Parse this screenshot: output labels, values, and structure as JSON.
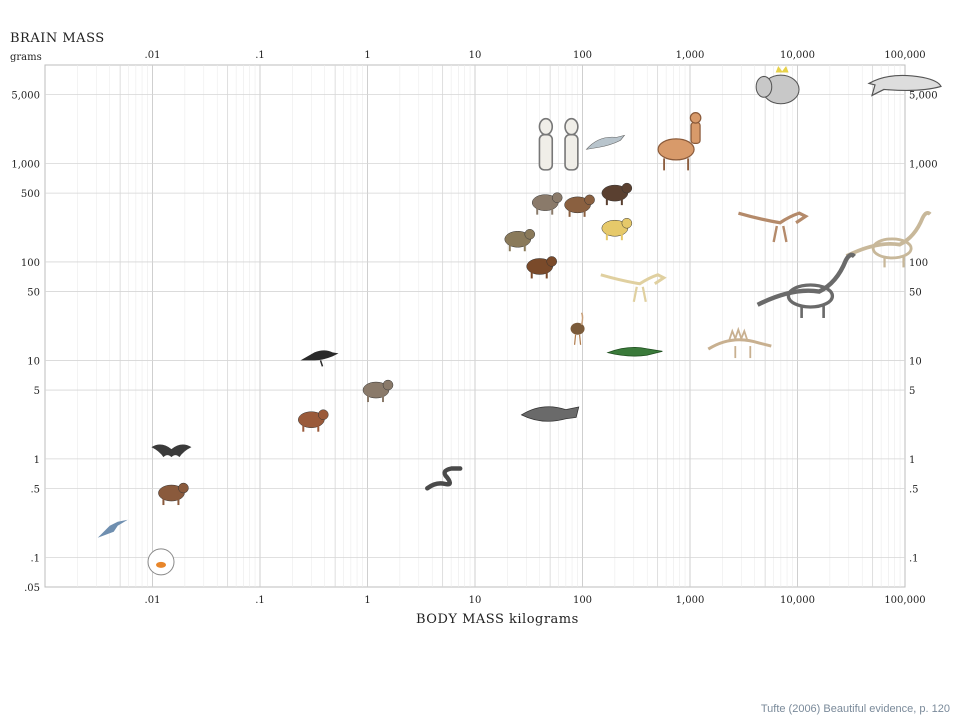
{
  "credit": "Tufte (2006) Beautiful evidence, p. 120",
  "chart_data": {
    "type": "scatter",
    "ylabel": "BRAIN MASS",
    "ylabel_unit": "grams",
    "xlabel": "BODY MASS kilograms",
    "x_scale": "log",
    "y_scale": "log",
    "xlim": [
      0.001,
      100000
    ],
    "ylim": [
      0.05,
      10000
    ],
    "grid": true,
    "x_ticks": [
      {
        "value": 0.01,
        "label": ".01"
      },
      {
        "value": 0.1,
        "label": ".1"
      },
      {
        "value": 1,
        "label": "1"
      },
      {
        "value": 10,
        "label": "10"
      },
      {
        "value": 100,
        "label": "100"
      },
      {
        "value": 1000,
        "label": "1,000"
      },
      {
        "value": 10000,
        "label": "10,000"
      },
      {
        "value": 100000,
        "label": "100,000"
      }
    ],
    "y_ticks_left": [
      {
        "value": 5000,
        "label": "5,000"
      },
      {
        "value": 1000,
        "label": "1,000"
      },
      {
        "value": 500,
        "label": "500"
      },
      {
        "value": 100,
        "label": "100"
      },
      {
        "value": 50,
        "label": "50"
      },
      {
        "value": 10,
        "label": "10"
      },
      {
        "value": 5,
        "label": "5"
      },
      {
        "value": 1,
        "label": "1"
      },
      {
        "value": 0.5,
        "label": ".5"
      },
      {
        "value": 0.1,
        "label": ".1"
      },
      {
        "value": 0.05,
        "label": ".05"
      }
    ],
    "y_ticks_right": [
      {
        "value": 5000,
        "label": "5,000"
      },
      {
        "value": 1000,
        "label": "1,000"
      },
      {
        "value": 100,
        "label": "100"
      },
      {
        "value": 50,
        "label": "50"
      },
      {
        "value": 10,
        "label": "10"
      },
      {
        "value": 5,
        "label": "5"
      },
      {
        "value": 1,
        "label": "1"
      },
      {
        "value": 0.5,
        "label": ".5"
      },
      {
        "value": 0.1,
        "label": ".1"
      }
    ],
    "points": [
      {
        "icon": "hummingbird",
        "x": 0.004,
        "y": 0.2,
        "color": "#6f8fb0"
      },
      {
        "icon": "goldfish-bowl",
        "x": 0.012,
        "y": 0.09,
        "color": "#e8862a"
      },
      {
        "icon": "mole",
        "x": 0.015,
        "y": 0.45,
        "color": "#8a5a3c"
      },
      {
        "icon": "bat",
        "x": 0.015,
        "y": 1.2,
        "color": "#3a3a3a"
      },
      {
        "icon": "rat",
        "x": 0.3,
        "y": 2.5,
        "color": "#9a5a3a"
      },
      {
        "icon": "raven",
        "x": 0.35,
        "y": 11,
        "color": "#2a2a2a"
      },
      {
        "icon": "squirrel",
        "x": 1.2,
        "y": 5,
        "color": "#8a7a6a"
      },
      {
        "icon": "eel",
        "x": 5,
        "y": 0.65,
        "color": "#4a4a4a"
      },
      {
        "icon": "coelacanth",
        "x": 50,
        "y": 2.8,
        "color": "#6a6a6a"
      },
      {
        "icon": "human",
        "x": 60,
        "y": 1400,
        "color": "#d8d4cc"
      },
      {
        "icon": "dolphin",
        "x": 160,
        "y": 1600,
        "color": "#b8c4cc"
      },
      {
        "icon": "chimpanzee",
        "x": 45,
        "y": 400,
        "color": "#8a7a6a"
      },
      {
        "icon": "baboon",
        "x": 25,
        "y": 170,
        "color": "#8a7a5a"
      },
      {
        "icon": "wolf",
        "x": 40,
        "y": 90,
        "color": "#7a4a2a"
      },
      {
        "icon": "gorilla",
        "x": 200,
        "y": 500,
        "color": "#5a4030"
      },
      {
        "icon": "orangutan",
        "x": 90,
        "y": 380,
        "color": "#8a6040"
      },
      {
        "icon": "lion",
        "x": 200,
        "y": 220,
        "color": "#e6c96a"
      },
      {
        "icon": "centaur",
        "x": 900,
        "y": 1600,
        "color": "#d89a6a"
      },
      {
        "icon": "elephant-king",
        "x": 7000,
        "y": 6000,
        "color": "#c8c8c8"
      },
      {
        "icon": "whale",
        "x": 100000,
        "y": 6500,
        "color": "#dddddd"
      },
      {
        "icon": "tyrannosaurus",
        "x": 6000,
        "y": 250,
        "color": "#b48a6a"
      },
      {
        "icon": "brachiosaurus",
        "x": 70000,
        "y": 150,
        "color": "#c8b89a"
      },
      {
        "icon": "allosaurus",
        "x": 300,
        "y": 60,
        "color": "#e0d0a0"
      },
      {
        "icon": "diplodocus",
        "x": 12000,
        "y": 50,
        "color": "#6a6a6a"
      },
      {
        "icon": "stegosaurus",
        "x": 3000,
        "y": 15,
        "color": "#c8b090"
      },
      {
        "icon": "ostrich",
        "x": 90,
        "y": 20,
        "color": "#7a5a3a"
      },
      {
        "icon": "crocodile",
        "x": 300,
        "y": 12,
        "color": "#3a7a3a"
      }
    ]
  }
}
